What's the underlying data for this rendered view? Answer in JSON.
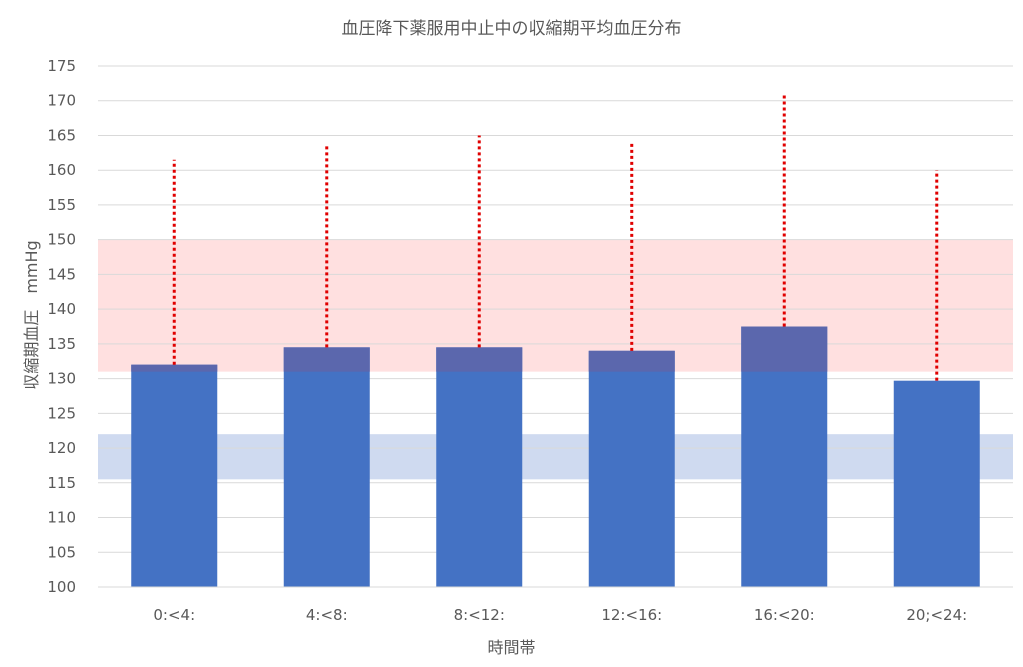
{
  "chart_data": {
    "type": "bar",
    "title": "血圧降下薬服用中止中の収縮期平均血圧分布",
    "xlabel": "時間帯",
    "ylabel": "収縮期血圧　mmHg",
    "categories": [
      "0:<4:",
      "4:<8:",
      "8:<12:",
      "12:<16:",
      "16:<20:",
      "20;<24:"
    ],
    "series": [
      {
        "values": [
          132,
          134.5,
          134.5,
          134,
          137.5,
          129.7
        ],
        "error_upper": [
          161.5,
          163.5,
          165,
          164,
          171,
          160
        ]
      }
    ],
    "bands": [
      {
        "from": 131,
        "to": 150,
        "color": "#ffe0e0"
      },
      {
        "from": 115.5,
        "to": 122,
        "color": "#cfdaf0"
      }
    ],
    "ylim": [
      100,
      175
    ],
    "yticks": [
      100,
      105,
      110,
      115,
      120,
      125,
      130,
      135,
      140,
      145,
      150,
      155,
      160,
      165,
      170,
      175
    ],
    "colors": {
      "bar": "#4472c4",
      "bar_overlap": "#5b67ad",
      "error": "#e00000",
      "grid": "#d9d9d9"
    },
    "grid": true,
    "legend": "none"
  }
}
